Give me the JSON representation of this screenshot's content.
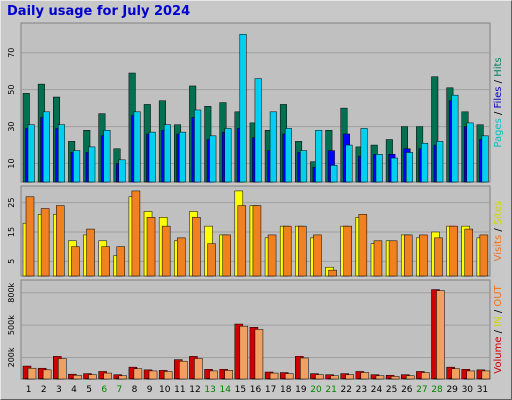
{
  "title": "Daily usage for July 2024",
  "panel_labels": {
    "top": [
      {
        "text": "Pages",
        "color": "#00c0c0"
      },
      {
        "text": " / ",
        "color": "#000000"
      },
      {
        "text": "Files",
        "color": "#0000cc"
      },
      {
        "text": " / ",
        "color": "#000000"
      },
      {
        "text": "Hits",
        "color": "#008060"
      }
    ],
    "middle": [
      {
        "text": "Visits",
        "color": "#f07020"
      },
      {
        "text": " / ",
        "color": "#000000"
      },
      {
        "text": "Sites",
        "color": "#d4d400"
      }
    ],
    "bottom": [
      {
        "text": "Volume",
        "color": "#cc0000"
      },
      {
        "text": " / ",
        "color": "#000000"
      },
      {
        "text": "IN",
        "color": "#d4d400"
      },
      {
        "text": " / ",
        "color": "#000000"
      },
      {
        "text": "OUT",
        "color": "#f07020"
      }
    ]
  },
  "colors": {
    "hits": "#007050",
    "files": "#0000ff",
    "pages": "#00d0f0",
    "sites": "#ffff00",
    "visits": "#f08020",
    "volume": "#d00000",
    "in": "#ffff00",
    "out": "#f0a060",
    "weekend_day": "#008000",
    "weekday": "#000000"
  },
  "chart_data": {
    "type": "bar",
    "categories": [
      "1",
      "2",
      "3",
      "4",
      "5",
      "6",
      "7",
      "8",
      "9",
      "10",
      "11",
      "12",
      "13",
      "14",
      "15",
      "16",
      "17",
      "18",
      "19",
      "20",
      "21",
      "22",
      "23",
      "24",
      "25",
      "26",
      "27",
      "28",
      "29",
      "30",
      "31"
    ],
    "weekend_days": [
      "6",
      "7",
      "13",
      "14",
      "20",
      "21",
      "27",
      "28"
    ],
    "panels": [
      {
        "name": "pages-files-hits",
        "yticks": [
          10,
          30,
          50,
          70
        ],
        "ylim": [
          0,
          85
        ],
        "series": [
          {
            "name": "Hits",
            "values": [
              48,
              53,
              46,
              22,
              28,
              37,
              18,
              59,
              42,
              44,
              31,
              52,
              41,
              43,
              38,
              32,
              28,
              42,
              22,
              11,
              28,
              40,
              19,
              20,
              23,
              30,
              30,
              57,
              51,
              38,
              31
            ]
          },
          {
            "name": "Files",
            "values": [
              29,
              35,
              29,
              16,
              16,
              25,
              10,
              36,
              26,
              28,
              26,
              35,
              23,
              27,
              29,
              24,
              17,
              26,
              16,
              8,
              17,
              26,
              14,
              15,
              15,
              18,
              18,
              20,
              44,
              30,
              23
            ]
          },
          {
            "name": "Pages",
            "values": [
              31,
              38,
              31,
              17,
              19,
              28,
              12,
              38,
              27,
              31,
              27,
              39,
              25,
              29,
              80,
              56,
              38,
              29,
              17,
              28,
              9,
              20,
              29,
              15,
              13,
              16,
              21,
              22,
              47,
              32,
              25
            ]
          }
        ]
      },
      {
        "name": "visits-sites",
        "yticks": [
          5,
          15,
          25
        ],
        "ylim": [
          0,
          30
        ],
        "series": [
          {
            "name": "Sites",
            "values": [
              18,
              21,
              21,
              12,
              14,
              12,
              7,
              27,
              22,
              20,
              12,
              22,
              17,
              14,
              29,
              24,
              13,
              17,
              17,
              13,
              3,
              17,
              20,
              11,
              12,
              14,
              13,
              15,
              17,
              17,
              13
            ]
          },
          {
            "name": "Visits",
            "values": [
              27,
              23,
              24,
              10,
              16,
              10,
              10,
              29,
              20,
              17,
              13,
              20,
              11,
              14,
              24,
              24,
              14,
              17,
              17,
              14,
              2,
              17,
              21,
              12,
              12,
              14,
              14,
              13,
              17,
              16,
              14
            ]
          }
        ]
      },
      {
        "name": "volume-in-out",
        "yticks": [
          "200k",
          "500k",
          "800k"
        ],
        "ylim": [
          0,
          900
        ],
        "series": [
          {
            "name": "Volume",
            "values": [
              120,
              100,
              210,
              45,
              50,
              70,
              40,
              110,
              85,
              80,
              180,
              210,
              90,
              90,
              510,
              480,
              65,
              60,
              210,
              50,
              40,
              50,
              70,
              40,
              35,
              40,
              70,
              830,
              110,
              90,
              85
            ]
          },
          {
            "name": "IN",
            "values": [
              5,
              5,
              5,
              5,
              5,
              5,
              5,
              5,
              5,
              5,
              5,
              5,
              5,
              5,
              5,
              5,
              5,
              5,
              5,
              5,
              5,
              5,
              5,
              5,
              5,
              5,
              5,
              5,
              5,
              5,
              5
            ]
          },
          {
            "name": "OUT",
            "values": [
              100,
              85,
              190,
              35,
              40,
              55,
              30,
              95,
              75,
              70,
              165,
              190,
              75,
              80,
              490,
              460,
              55,
              50,
              195,
              40,
              30,
              40,
              60,
              30,
              25,
              30,
              60,
              820,
              95,
              75,
              75
            ]
          }
        ]
      }
    ]
  }
}
